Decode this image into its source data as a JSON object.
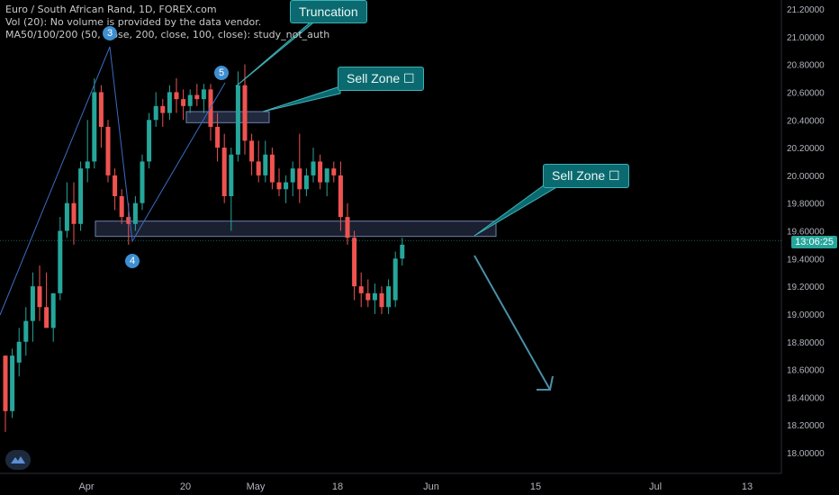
{
  "legend": {
    "symbol": "Euro / South African Rand, 1D, FOREX.com",
    "volume": "Vol (20): No volume is provided by the data vendor.",
    "ma": "MA50/100/200 (50, close, 200, close, 100, close): study_not_auth"
  },
  "annotations": {
    "truncation": "Truncation",
    "sell_zone_1": "Sell Zone ☐",
    "sell_zone_2": "Sell Zone ☐",
    "wave_3": "3",
    "wave_4": "4",
    "wave_5": "5"
  },
  "price_tag": "13:06:25",
  "colors": {
    "up": "#26a69a",
    "down": "#ef5350",
    "line": "#3a6cc4",
    "zone": "#4a5b8a",
    "arrow": "#4a8fa7"
  },
  "chart_data": {
    "type": "candlestick",
    "title": "Euro / South African Rand, 1D, FOREX.com",
    "ylim": [
      17.9,
      21.3
    ],
    "y_ticks": [
      "21.20000",
      "21.00000",
      "20.80000",
      "20.60000",
      "20.40000",
      "20.20000",
      "20.00000",
      "19.80000",
      "19.60000",
      "19.40000",
      "19.20000",
      "19.00000",
      "18.80000",
      "18.60000",
      "18.40000",
      "18.20000",
      "18.00000"
    ],
    "x_ticks": [
      "Apr",
      "20",
      "May",
      "18",
      "Jun",
      "15",
      "Jul",
      "13"
    ],
    "current_price": 19.53,
    "candles_ohlc": [
      [
        18.7,
        18.7,
        18.15,
        18.3
      ],
      [
        18.3,
        18.75,
        18.25,
        18.7
      ],
      [
        18.65,
        18.9,
        18.55,
        18.8
      ],
      [
        18.8,
        19.05,
        18.7,
        18.95
      ],
      [
        18.95,
        19.3,
        18.8,
        19.2
      ],
      [
        19.2,
        19.35,
        18.95,
        19.05
      ],
      [
        19.05,
        19.3,
        18.9,
        18.9
      ],
      [
        18.9,
        19.15,
        18.8,
        19.15
      ],
      [
        19.15,
        19.7,
        19.1,
        19.6
      ],
      [
        19.6,
        19.95,
        19.55,
        19.8
      ],
      [
        19.8,
        19.95,
        19.5,
        19.65
      ],
      [
        19.65,
        20.1,
        19.6,
        20.05
      ],
      [
        20.05,
        20.4,
        19.95,
        20.1
      ],
      [
        20.1,
        20.7,
        20.05,
        20.6
      ],
      [
        20.6,
        20.65,
        20.2,
        20.35
      ],
      [
        20.35,
        20.4,
        19.95,
        20.0
      ],
      [
        20.0,
        20.05,
        19.75,
        19.85
      ],
      [
        19.85,
        19.9,
        19.65,
        19.7
      ],
      [
        19.7,
        19.8,
        19.5,
        19.65
      ],
      [
        19.65,
        19.85,
        19.6,
        19.8
      ],
      [
        19.8,
        20.15,
        19.75,
        20.1
      ],
      [
        20.1,
        20.45,
        20.05,
        20.4
      ],
      [
        20.4,
        20.6,
        20.35,
        20.5
      ],
      [
        20.5,
        20.55,
        20.35,
        20.45
      ],
      [
        20.45,
        20.65,
        20.4,
        20.6
      ],
      [
        20.6,
        20.7,
        20.45,
        20.55
      ],
      [
        20.55,
        20.62,
        20.4,
        20.5
      ],
      [
        20.5,
        20.62,
        20.45,
        20.58
      ],
      [
        20.58,
        20.66,
        20.5,
        20.55
      ],
      [
        20.55,
        20.66,
        20.45,
        20.62
      ],
      [
        20.62,
        20.66,
        20.25,
        20.35
      ],
      [
        20.35,
        20.45,
        20.1,
        20.2
      ],
      [
        20.2,
        20.3,
        19.8,
        19.85
      ],
      [
        19.85,
        20.2,
        19.6,
        20.15
      ],
      [
        20.15,
        20.75,
        20.1,
        20.65
      ],
      [
        20.65,
        20.8,
        20.15,
        20.25
      ],
      [
        20.25,
        20.3,
        20.0,
        20.1
      ],
      [
        20.1,
        20.25,
        19.95,
        20.0
      ],
      [
        20.0,
        20.25,
        19.95,
        20.15
      ],
      [
        20.15,
        20.2,
        19.9,
        19.95
      ],
      [
        19.95,
        20.05,
        19.85,
        19.9
      ],
      [
        19.9,
        20.0,
        19.8,
        19.95
      ],
      [
        19.95,
        20.1,
        19.85,
        20.05
      ],
      [
        20.05,
        20.3,
        19.8,
        19.9
      ],
      [
        19.9,
        20.05,
        19.85,
        20.0
      ],
      [
        20.0,
        20.2,
        19.95,
        20.1
      ],
      [
        20.1,
        20.15,
        19.9,
        19.95
      ],
      [
        19.95,
        20.05,
        19.85,
        20.05
      ],
      [
        20.05,
        20.1,
        19.95,
        20.0
      ],
      [
        20.0,
        20.1,
        19.6,
        19.7
      ],
      [
        19.7,
        19.8,
        19.5,
        19.55
      ],
      [
        19.55,
        19.6,
        19.1,
        19.2
      ],
      [
        19.2,
        19.3,
        19.05,
        19.15
      ],
      [
        19.15,
        19.25,
        19.05,
        19.1
      ],
      [
        19.1,
        19.22,
        19.0,
        19.15
      ],
      [
        19.15,
        19.2,
        19.0,
        19.05
      ],
      [
        19.05,
        19.25,
        19.0,
        19.2
      ],
      [
        19.1,
        19.45,
        19.05,
        19.4
      ],
      [
        19.4,
        19.55,
        19.35,
        19.5
      ]
    ]
  }
}
